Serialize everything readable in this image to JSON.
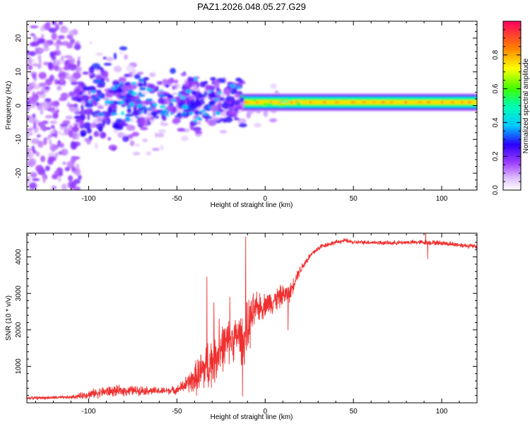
{
  "chart_data": [
    {
      "type": "heatmap",
      "title": "PAZ1.2026.048.05.27.G29",
      "xlabel": "Height of straight line (km)",
      "ylabel": "Frequency (Hz)",
      "xlim": [
        -135,
        120
      ],
      "ylim": [
        -25,
        25
      ],
      "xticks": [
        -100,
        -50,
        0,
        50,
        100
      ],
      "yticks": [
        -20,
        -10,
        0,
        10,
        20
      ],
      "xtick_labels": [
        "-100",
        "-50",
        "0",
        "50",
        "100"
      ],
      "ytick_labels": [
        "-20",
        "-10",
        "0",
        "10",
        "20"
      ],
      "colorbar": {
        "label": "Normalized spectral amplitude",
        "range": [
          0,
          1
        ],
        "ticks": [
          0.0,
          0.2,
          0.4,
          0.6,
          0.8
        ],
        "tick_labels": [
          "0.0",
          "0.2",
          "0.4",
          "0.6",
          "0.8"
        ]
      },
      "features": {
        "carrier_line": {
          "x_start": -12,
          "x_end": 120,
          "frequency": 1,
          "amplitude": 0.75
        },
        "scatter_region": {
          "x_start": -135,
          "x_end": -12,
          "frequency_spread_hz": 25
        }
      }
    },
    {
      "type": "line",
      "title": "",
      "xlabel": "Height of straight line (km)",
      "ylabel": "SNR (10 * v/v)",
      "xlim": [
        -135,
        120
      ],
      "ylim": [
        0,
        4650
      ],
      "xticks": [
        -100,
        -50,
        0,
        50,
        100
      ],
      "yticks": [
        1000,
        2000,
        3000,
        4000
      ],
      "xtick_labels": [
        "-100",
        "-50",
        "0",
        "50",
        "100"
      ],
      "ytick_labels": [
        "1000",
        "2000",
        "3000",
        "4000"
      ],
      "series": [
        {
          "name": "SNR",
          "color": "#f03030",
          "x": [
            -135,
            -110,
            -100,
            -90,
            -80,
            -70,
            -60,
            -50,
            -45,
            -40,
            -35,
            -30,
            -25,
            -20,
            -15,
            -12,
            -10,
            -8,
            -5,
            -2,
            0,
            5,
            10,
            14,
            18,
            22,
            25,
            28,
            32,
            36,
            40,
            45,
            50,
            60,
            70,
            80,
            90,
            100,
            110,
            120
          ],
          "mean": [
            130,
            150,
            230,
            310,
            330,
            340,
            320,
            350,
            500,
            650,
            900,
            1150,
            1500,
            1700,
            1850,
            1700,
            2000,
            2300,
            2600,
            2600,
            2700,
            2800,
            2950,
            3000,
            3500,
            3800,
            4000,
            4150,
            4300,
            4350,
            4400,
            4450,
            4400,
            4400,
            4380,
            4400,
            4400,
            4380,
            4330,
            4280
          ],
          "noise": [
            50,
            55,
            140,
            180,
            170,
            150,
            120,
            130,
            260,
            500,
            800,
            900,
            800,
            700,
            700,
            900,
            900,
            800,
            500,
            400,
            400,
            400,
            350,
            300,
            180,
            150,
            110,
            100,
            80,
            80,
            70,
            70,
            70,
            70,
            70,
            70,
            80,
            80,
            80,
            80
          ],
          "spikes": [
            {
              "x": -33,
              "y": 3450
            },
            {
              "x": -29,
              "y": 2750
            },
            {
              "x": -26,
              "y": 2300
            },
            {
              "x": -20,
              "y": 2900
            },
            {
              "x": -12.8,
              "y": 180
            },
            {
              "x": -11,
              "y": 4550
            },
            {
              "x": -3,
              "y": 3000
            },
            {
              "x": 13,
              "y": 2000
            },
            {
              "x": 91,
              "y": 4680
            },
            {
              "x": 92,
              "y": 3950
            }
          ]
        }
      ]
    }
  ]
}
